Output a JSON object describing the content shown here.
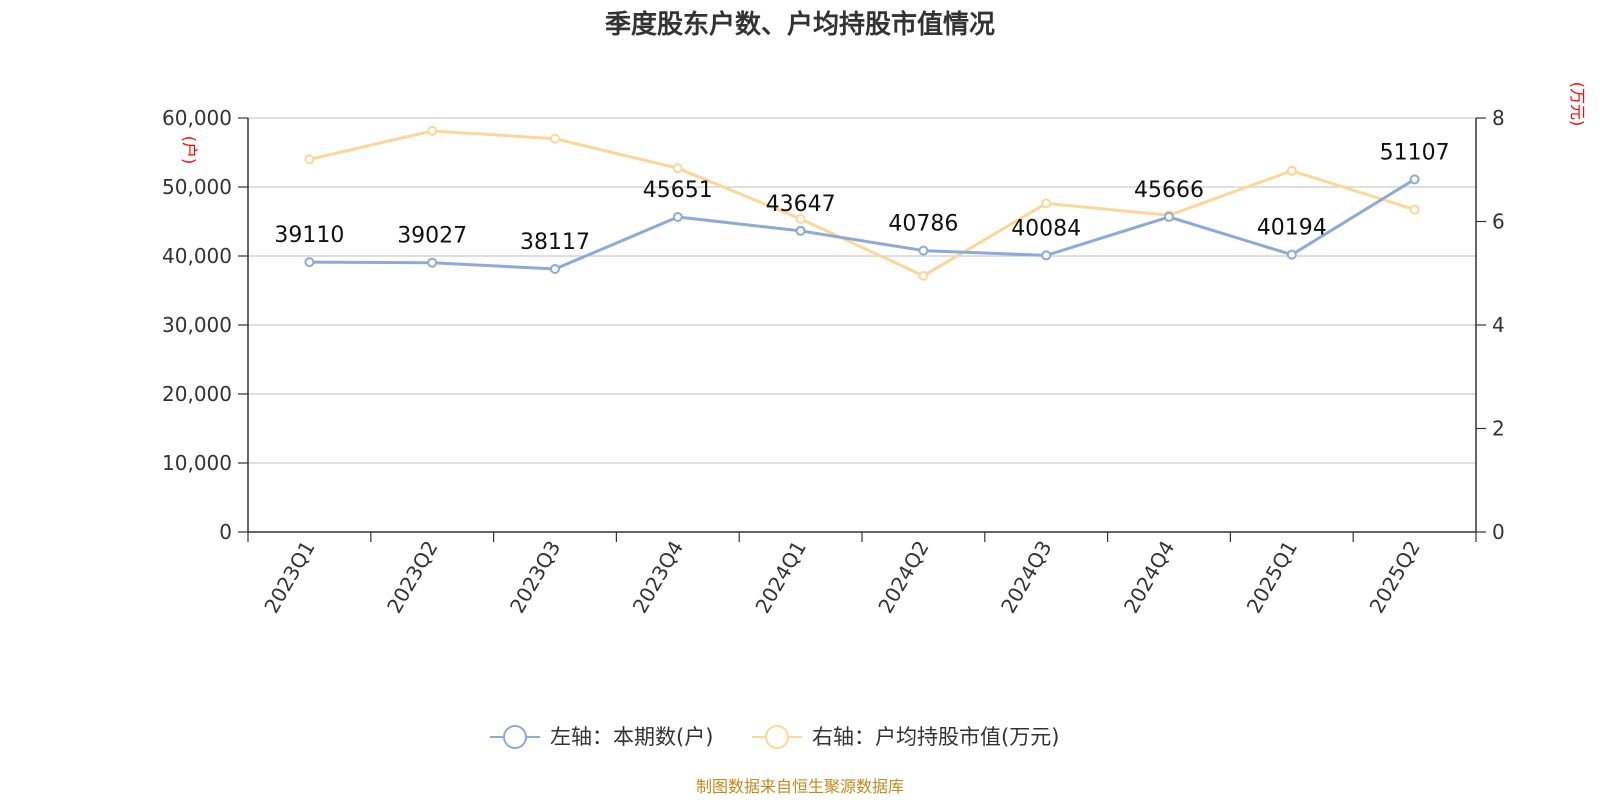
{
  "chart_data": {
    "type": "line",
    "title": "季度股东户数、户均持股市值情况",
    "categories": [
      "2023Q1",
      "2023Q2",
      "2023Q3",
      "2023Q4",
      "2024Q1",
      "2024Q2",
      "2024Q3",
      "2024Q4",
      "2025Q1",
      "2025Q2"
    ],
    "left_axis": {
      "unit_label": "(户)",
      "ylim": [
        0,
        60000
      ],
      "ticks": [
        0,
        10000,
        20000,
        30000,
        40000,
        50000,
        60000
      ],
      "tick_labels": [
        "0",
        "10,000",
        "20,000",
        "30,000",
        "40,000",
        "50,000",
        "60,000"
      ]
    },
    "right_axis": {
      "unit_label": "(万元)",
      "ylim": [
        0,
        8
      ],
      "ticks": [
        0,
        2,
        4,
        6,
        8
      ],
      "tick_labels": [
        "0",
        "2",
        "4",
        "6",
        "8"
      ]
    },
    "series": [
      {
        "name": "左轴：本期数(户)",
        "axis": "left",
        "color": "#8eaad6",
        "values": [
          39110,
          39027,
          38117,
          45651,
          43647,
          40786,
          40084,
          45666,
          40194,
          51107
        ],
        "data_labels": [
          "39110",
          "39027",
          "38117",
          "45651",
          "43647",
          "40786",
          "40084",
          "45666",
          "40194",
          "51107"
        ]
      },
      {
        "name": "右轴：户均持股市值(万元)",
        "axis": "right",
        "color": "#fcd798",
        "values": [
          7.2,
          7.75,
          7.6,
          7.03,
          6.05,
          4.95,
          6.35,
          6.12,
          6.98,
          6.23
        ]
      }
    ],
    "grid": true,
    "legend_position": "bottom-center",
    "source": "制图数据来自恒生聚源数据库"
  }
}
